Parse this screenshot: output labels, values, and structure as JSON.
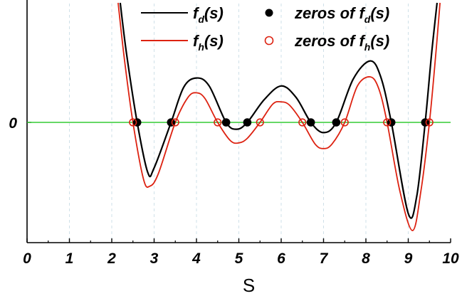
{
  "chart_data": {
    "type": "line",
    "xlabel": "S",
    "ylabel": "",
    "xlim": [
      0,
      10
    ],
    "ylim": [
      -1.0,
      1.0
    ],
    "x_ticks": [
      "0",
      "1",
      "2",
      "3",
      "4",
      "5",
      "6",
      "7",
      "8",
      "9",
      "10"
    ],
    "y_tick_label": "0",
    "y_tick_value": 0,
    "zero_line_color": "#33cc33",
    "grid": true,
    "legend_position": "top-right",
    "series": [
      {
        "name": "f_d(s)",
        "name_main": "f",
        "name_sub": "d",
        "name_tail": "(s)",
        "color": "#000000",
        "zeros": [
          2.6,
          3.4,
          4.7,
          5.2,
          6.7,
          7.3,
          8.6,
          9.4
        ],
        "points": [
          [
            2.2,
            1.05
          ],
          [
            2.35,
            0.6
          ],
          [
            2.6,
            0.0
          ],
          [
            2.85,
            -0.44
          ],
          [
            3.0,
            -0.4
          ],
          [
            3.4,
            0.0
          ],
          [
            3.7,
            0.31
          ],
          [
            4.0,
            0.39
          ],
          [
            4.3,
            0.32
          ],
          [
            4.7,
            0.0
          ],
          [
            4.95,
            -0.06
          ],
          [
            5.2,
            0.0
          ],
          [
            5.6,
            0.2
          ],
          [
            6.0,
            0.32
          ],
          [
            6.35,
            0.22
          ],
          [
            6.7,
            0.0
          ],
          [
            7.0,
            -0.09
          ],
          [
            7.3,
            0.0
          ],
          [
            7.7,
            0.38
          ],
          [
            8.1,
            0.54
          ],
          [
            8.35,
            0.4
          ],
          [
            8.6,
            0.0
          ],
          [
            9.0,
            -0.8
          ],
          [
            9.2,
            -0.65
          ],
          [
            9.4,
            0.0
          ],
          [
            9.55,
            0.6
          ],
          [
            9.68,
            1.05
          ]
        ]
      },
      {
        "name": "f_h(s)",
        "name_main": "f",
        "name_sub": "h",
        "name_tail": "(s)",
        "color": "#dd2211",
        "zeros": [
          2.5,
          3.5,
          4.5,
          5.5,
          6.5,
          7.5,
          8.5,
          9.5
        ],
        "points": [
          [
            2.15,
            1.05
          ],
          [
            2.3,
            0.55
          ],
          [
            2.5,
            0.0
          ],
          [
            2.75,
            -0.5
          ],
          [
            2.9,
            -0.56
          ],
          [
            3.1,
            -0.45
          ],
          [
            3.5,
            0.0
          ],
          [
            3.8,
            0.22
          ],
          [
            4.0,
            0.26
          ],
          [
            4.2,
            0.21
          ],
          [
            4.5,
            0.0
          ],
          [
            4.8,
            -0.16
          ],
          [
            5.0,
            -0.18
          ],
          [
            5.2,
            -0.14
          ],
          [
            5.5,
            0.0
          ],
          [
            5.8,
            0.16
          ],
          [
            6.0,
            0.18
          ],
          [
            6.2,
            0.15
          ],
          [
            6.5,
            0.0
          ],
          [
            6.8,
            -0.19
          ],
          [
            7.0,
            -0.23
          ],
          [
            7.2,
            -0.19
          ],
          [
            7.5,
            0.0
          ],
          [
            7.8,
            0.32
          ],
          [
            8.1,
            0.4
          ],
          [
            8.3,
            0.3
          ],
          [
            8.5,
            0.0
          ],
          [
            8.8,
            -0.6
          ],
          [
            9.1,
            -0.95
          ],
          [
            9.3,
            -0.6
          ],
          [
            9.5,
            0.0
          ],
          [
            9.65,
            0.6
          ],
          [
            9.75,
            1.05
          ]
        ]
      }
    ],
    "legend": [
      {
        "type": "line",
        "series": 0,
        "main": "f",
        "sub": "d",
        "tail": "(s)"
      },
      {
        "type": "line",
        "series": 1,
        "main": "f",
        "sub": "h",
        "tail": "(s)"
      },
      {
        "type": "marker",
        "marker": "filled-circle",
        "color": "#000000",
        "main": "zeros of f",
        "sub": "d",
        "tail": "(s)"
      },
      {
        "type": "marker",
        "marker": "open-circle",
        "color": "#dd2211",
        "main": "zeros of f",
        "sub": "h",
        "tail": "(s)"
      }
    ]
  }
}
